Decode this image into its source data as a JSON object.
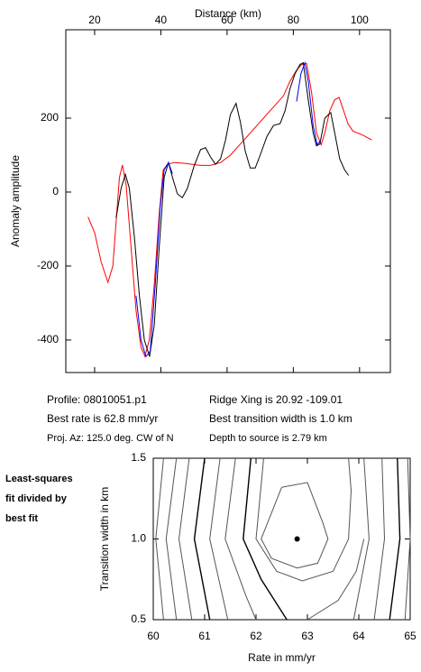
{
  "chart_data": [
    {
      "type": "line",
      "xlabel": "Distance (km)",
      "ylabel": "Anomaly amplitude",
      "xlim": [
        11.3,
        109.3
      ],
      "ylim": [
        -488,
        439
      ],
      "xticks": [
        20,
        40,
        60,
        80,
        100
      ],
      "yticks": [
        -400,
        -200,
        0,
        200
      ],
      "series": [
        {
          "color": "#ff0000",
          "x": [
            18,
            20,
            22,
            24,
            25.5,
            26.5,
            27.5,
            28.4,
            29.5,
            31,
            32.5,
            34,
            35.2,
            36.5,
            38,
            39.5,
            40.7,
            42,
            44,
            47,
            52,
            55,
            58,
            61,
            64,
            67,
            70,
            74,
            77,
            79,
            81,
            82.5,
            84,
            85.5,
            87,
            88.4,
            89.5,
            91,
            92.5,
            93.8,
            95,
            96.5,
            98,
            101,
            103.7
          ],
          "values": [
            -67,
            -110,
            -190,
            -244,
            -200,
            -80,
            40,
            73,
            20,
            -150,
            -320,
            -420,
            -444,
            -400,
            -250,
            -60,
            60,
            75,
            80,
            78,
            72,
            72,
            80,
            100,
            130,
            160,
            190,
            230,
            260,
            300,
            330,
            345,
            348,
            270,
            160,
            128,
            160,
            220,
            250,
            256,
            225,
            185,
            165,
            154,
            141
          ]
        },
        {
          "color": "#000000",
          "x": [
            26.5,
            28,
            29.3,
            30.5,
            32,
            33.5,
            35,
            36.6,
            38,
            39.5,
            41,
            42.3,
            43.5,
            45,
            46.5,
            48,
            50,
            52,
            53.5,
            55,
            56.5,
            58,
            59.5,
            61,
            62.7,
            64,
            65.5,
            67,
            68.5,
            70,
            72,
            74,
            76,
            77.5,
            79,
            80.5,
            82,
            83,
            84.5,
            86,
            87,
            88,
            89.5,
            91.3,
            92.5,
            94,
            95.5,
            96.7
          ],
          "values": [
            -70,
            10,
            48,
            10,
            -120,
            -280,
            -400,
            -445,
            -360,
            -150,
            40,
            80,
            40,
            -5,
            -15,
            10,
            70,
            115,
            120,
            95,
            75,
            90,
            140,
            210,
            240,
            190,
            110,
            65,
            65,
            100,
            150,
            180,
            185,
            220,
            280,
            320,
            345,
            350,
            250,
            160,
            125,
            130,
            200,
            215,
            160,
            90,
            60,
            45
          ]
        },
        {
          "color": "#0000ff",
          "x": [
            32.5,
            34,
            35.5,
            36.8,
            38.3,
            39.8,
            41,
            42.3,
            43.5,
            60,
            81,
            82.3,
            83.5,
            84.5,
            86,
            87.2,
            88.3
          ],
          "values": [
            -280,
            -400,
            -445,
            -430,
            -250,
            -40,
            60,
            80,
            50,
            null,
            245,
            320,
            350,
            300,
            180,
            128,
            140
          ]
        }
      ]
    },
    {
      "type": "contour",
      "xlabel": "Rate in mm/yr",
      "ylabel": "Transition width in km",
      "xlim": [
        60,
        65
      ],
      "ylim": [
        0.5,
        1.5
      ],
      "xticks": [
        60,
        61,
        62,
        63,
        64,
        65
      ],
      "yticks": [
        0.5,
        {
          "value": 1,
          "label": "1.0"
        },
        1.5
      ],
      "best_fit": {
        "x": 62.8,
        "y": 1.0
      },
      "series": [
        {
          "color": "#555555",
          "x": [
            60.2,
            60.05,
            60.2
          ],
          "values": [
            1.5,
            1.0,
            0.5
          ]
        },
        {
          "color": "#555555",
          "x": [
            60.45,
            60.25,
            60.45
          ],
          "values": [
            1.5,
            1.0,
            0.5
          ]
        },
        {
          "color": "#555555",
          "x": [
            60.7,
            60.5,
            60.75
          ],
          "values": [
            1.5,
            1.0,
            0.5
          ]
        },
        {
          "color": "#000000",
          "x": [
            61.0,
            60.8,
            61.1
          ],
          "values": [
            1.5,
            1.0,
            0.5
          ]
        },
        {
          "color": "#555555",
          "x": [
            61.3,
            61.1,
            61.45
          ],
          "values": [
            1.5,
            1.0,
            0.5
          ]
        },
        {
          "color": "#555555",
          "x": [
            61.6,
            61.4,
            61.8,
            62.0
          ],
          "values": [
            1.5,
            1.0,
            0.65,
            0.5
          ]
        },
        {
          "color": "#000000",
          "x": [
            61.9,
            61.75,
            62.1,
            62.4,
            62.6
          ],
          "values": [
            1.5,
            1.0,
            0.75,
            0.6,
            0.5
          ]
        },
        {
          "color": "#555555",
          "x": [
            62.15,
            62.0,
            62.4,
            62.9,
            63.5,
            63.8,
            63.85,
            63.8
          ],
          "values": [
            1.5,
            1.0,
            0.8,
            0.74,
            0.8,
            1.0,
            1.3,
            1.5
          ]
        },
        {
          "color": "#555555",
          "x": [
            62.5,
            63.0,
            63.3,
            63.4,
            63.2,
            62.8,
            62.3,
            62.1,
            62.5
          ],
          "values": [
            1.32,
            1.35,
            1.1,
            1.0,
            0.85,
            0.82,
            0.88,
            1.0,
            1.32
          ]
        },
        {
          "color": "#555555",
          "x": [
            63.0,
            63.6,
            63.95,
            64.1
          ],
          "values": [
            0.5,
            0.62,
            0.8,
            1.0
          ]
        },
        {
          "color": "#555555",
          "x": [
            64.1,
            64.2,
            63.9
          ],
          "values": [
            1.5,
            1.0,
            0.5
          ]
        },
        {
          "color": "#555555",
          "x": [
            64.45,
            64.5,
            64.3
          ],
          "values": [
            1.5,
            1.0,
            0.5
          ]
        },
        {
          "color": "#000000",
          "x": [
            64.75,
            64.8,
            64.6
          ],
          "values": [
            1.5,
            1.0,
            0.5
          ]
        },
        {
          "color": "#555555",
          "x": [
            64.95,
            65.0,
            64.9
          ],
          "values": [
            1.5,
            1.0,
            0.5
          ]
        }
      ]
    }
  ],
  "info": {
    "profile": "Profile: 08010051.p1",
    "rate": "Best rate is 62.8 mm/yr",
    "azimuth": "Proj. Az: 125.0 deg. CW of N",
    "ridge": "Ridge Xing is 20.92 -109.01",
    "width": "Best transition width is 1.0 km",
    "depth": "Depth to source is   2.79 km"
  },
  "note": [
    "Least-squares",
    "fit divided by",
    "best fit"
  ]
}
